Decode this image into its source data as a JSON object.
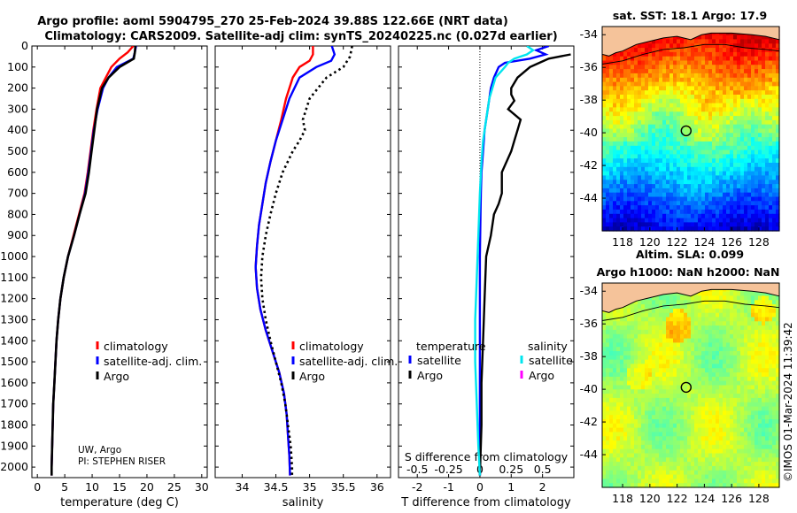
{
  "title": {
    "line1": "Argo profile: aoml 5904795_270 25-Feb-2024 39.88S 122.66E (NRT data)",
    "line2": "Climatology: CARS2009. Satellite-adj clim: synTS_20240225.nc (0.027d earlier)"
  },
  "depth_ticks": [
    0,
    100,
    200,
    300,
    400,
    500,
    600,
    700,
    800,
    900,
    1000,
    1100,
    1200,
    1300,
    1400,
    1500,
    1600,
    1700,
    1800,
    1900,
    2000
  ],
  "colors": {
    "climatology": "#ff0000",
    "satellite": "#0000ff",
    "argo": "#000000",
    "sat_salinity": "#00e5ee",
    "argo_salinity": "#ff00ff",
    "land": "#f5c39a"
  },
  "chart_data": [
    {
      "type": "line",
      "id": "temperature",
      "xlabel": "temperature (deg C)",
      "xlim": [
        -1,
        31
      ],
      "xticks": [
        0,
        5,
        10,
        15,
        20,
        25,
        30
      ],
      "ylim": [
        2050,
        0
      ],
      "legend": [
        "climatology",
        "satellite-adj. clim.",
        "Argo"
      ],
      "credit": [
        "UW, Argo",
        "PI: STEPHEN RISER"
      ],
      "series": [
        {
          "name": "climatology",
          "color": "#ff0000",
          "points": [
            [
              17.5,
              0
            ],
            [
              16.5,
              30
            ],
            [
              15,
              60
            ],
            [
              13.5,
              100
            ],
            [
              12.5,
              150
            ],
            [
              11.5,
              200
            ],
            [
              10.8,
              300
            ],
            [
              10.2,
              400
            ],
            [
              9.7,
              500
            ],
            [
              9.2,
              600
            ],
            [
              8.6,
              700
            ],
            [
              7.6,
              800
            ],
            [
              6.6,
              900
            ],
            [
              5.6,
              1000
            ],
            [
              4.8,
              1100
            ],
            [
              4.2,
              1200
            ],
            [
              3.8,
              1300
            ],
            [
              3.5,
              1400
            ],
            [
              3.3,
              1500
            ],
            [
              3.1,
              1600
            ],
            [
              2.9,
              1700
            ],
            [
              2.8,
              1800
            ],
            [
              2.7,
              1900
            ],
            [
              2.6,
              2000
            ],
            [
              2.6,
              2040
            ]
          ]
        },
        {
          "name": "satellite-adj. clim.",
          "color": "#0000ff",
          "points": [
            [
              18,
              0
            ],
            [
              17.8,
              30
            ],
            [
              17.5,
              60
            ],
            [
              14.5,
              100
            ],
            [
              13,
              150
            ],
            [
              12,
              200
            ],
            [
              11,
              300
            ],
            [
              10.3,
              400
            ],
            [
              9.8,
              500
            ],
            [
              9.3,
              600
            ],
            [
              8.7,
              700
            ],
            [
              7.7,
              800
            ],
            [
              6.7,
              900
            ],
            [
              5.6,
              1000
            ],
            [
              4.8,
              1100
            ],
            [
              4.2,
              1200
            ],
            [
              3.8,
              1300
            ],
            [
              3.5,
              1400
            ],
            [
              3.3,
              1500
            ],
            [
              3.1,
              1600
            ],
            [
              2.9,
              1700
            ],
            [
              2.8,
              1800
            ],
            [
              2.7,
              1900
            ],
            [
              2.6,
              2000
            ],
            [
              2.6,
              2040
            ]
          ]
        },
        {
          "name": "Argo",
          "color": "#000000",
          "points": [
            [
              17.9,
              0
            ],
            [
              17.8,
              30
            ],
            [
              17.6,
              60
            ],
            [
              15,
              100
            ],
            [
              13,
              150
            ],
            [
              11.8,
              200
            ],
            [
              10.9,
              300
            ],
            [
              10.4,
              400
            ],
            [
              9.9,
              500
            ],
            [
              9.4,
              600
            ],
            [
              8.8,
              700
            ],
            [
              7.7,
              800
            ],
            [
              6.7,
              900
            ],
            [
              5.6,
              1000
            ],
            [
              4.8,
              1100
            ],
            [
              4.2,
              1200
            ],
            [
              3.8,
              1300
            ],
            [
              3.5,
              1400
            ],
            [
              3.3,
              1500
            ],
            [
              3.1,
              1600
            ],
            [
              2.9,
              1700
            ],
            [
              2.8,
              1800
            ],
            [
              2.7,
              1900
            ],
            [
              2.6,
              2000
            ],
            [
              2.6,
              2040
            ]
          ]
        }
      ]
    },
    {
      "type": "line",
      "id": "salinity",
      "xlabel": "salinity",
      "xlim": [
        33.6,
        36.2
      ],
      "xticks": [
        34,
        34.5,
        35,
        35.5,
        36
      ],
      "ylim": [
        2050,
        0
      ],
      "legend": [
        "climatology",
        "satellite-adj. clim.",
        "Argo"
      ],
      "series": [
        {
          "name": "climatology",
          "color": "#ff0000",
          "points": [
            [
              35.05,
              0
            ],
            [
              35.05,
              40
            ],
            [
              35,
              70
            ],
            [
              34.85,
              100
            ],
            [
              34.75,
              150
            ],
            [
              34.65,
              250
            ],
            [
              34.58,
              350
            ],
            [
              34.5,
              450
            ],
            [
              34.42,
              550
            ],
            [
              34.35,
              650
            ],
            [
              34.3,
              750
            ],
            [
              34.25,
              850
            ],
            [
              34.22,
              950
            ],
            [
              34.2,
              1050
            ],
            [
              34.22,
              1150
            ],
            [
              34.27,
              1250
            ],
            [
              34.35,
              1350
            ],
            [
              34.45,
              1450
            ],
            [
              34.55,
              1550
            ],
            [
              34.62,
              1650
            ],
            [
              34.66,
              1750
            ],
            [
              34.68,
              1850
            ],
            [
              34.7,
              1950
            ],
            [
              34.71,
              2040
            ]
          ]
        },
        {
          "name": "satellite-adj. clim.",
          "color": "#0000ff",
          "points": [
            [
              35.33,
              0
            ],
            [
              35.37,
              40
            ],
            [
              35.32,
              70
            ],
            [
              35.1,
              100
            ],
            [
              34.85,
              150
            ],
            [
              34.7,
              250
            ],
            [
              34.6,
              350
            ],
            [
              34.5,
              450
            ],
            [
              34.42,
              550
            ],
            [
              34.35,
              650
            ],
            [
              34.3,
              750
            ],
            [
              34.25,
              850
            ],
            [
              34.22,
              950
            ],
            [
              34.2,
              1050
            ],
            [
              34.22,
              1150
            ],
            [
              34.27,
              1250
            ],
            [
              34.35,
              1350
            ],
            [
              34.45,
              1450
            ],
            [
              34.55,
              1550
            ],
            [
              34.62,
              1650
            ],
            [
              34.66,
              1750
            ],
            [
              34.68,
              1850
            ],
            [
              34.7,
              1950
            ],
            [
              34.71,
              2040
            ]
          ]
        },
        {
          "name": "Argo",
          "color": "#000000",
          "points": [
            [
              35.63,
              0
            ],
            [
              35.6,
              50
            ],
            [
              35.5,
              100
            ],
            [
              35.25,
              150
            ],
            [
              35.0,
              250
            ],
            [
              34.95,
              300
            ],
            [
              34.9,
              350
            ],
            [
              34.93,
              400
            ],
            [
              34.85,
              450
            ],
            [
              34.75,
              500
            ],
            [
              34.6,
              600
            ],
            [
              34.5,
              700
            ],
            [
              34.42,
              800
            ],
            [
              34.35,
              900
            ],
            [
              34.3,
              1000
            ],
            [
              34.28,
              1100
            ],
            [
              34.3,
              1200
            ],
            [
              34.35,
              1300
            ],
            [
              34.42,
              1400
            ],
            [
              34.5,
              1500
            ],
            [
              34.58,
              1600
            ],
            [
              34.64,
              1700
            ],
            [
              34.68,
              1800
            ],
            [
              34.72,
              1900
            ],
            [
              34.74,
              2000
            ],
            [
              34.74,
              2040
            ]
          ]
        }
      ]
    },
    {
      "type": "line",
      "id": "difference",
      "xlabel": "T difference from climatology",
      "xlabel_top": "S difference from climatology",
      "xlim": [
        -2.6,
        3.0
      ],
      "xticks": [
        -2,
        -1,
        0,
        1,
        2
      ],
      "s_ticks": [
        -0.5,
        -0.25,
        0,
        0.25,
        0.5
      ],
      "ylim": [
        2050,
        0
      ],
      "legend_headers": [
        "temperature",
        "salinity"
      ],
      "legend": [
        "satellite",
        "Argo",
        "satellite",
        "Argo"
      ],
      "series": [
        {
          "name": "satellite",
          "quantity": "temperature",
          "color": "#0000ff",
          "points": [
            [
              2.2,
              0
            ],
            [
              1.8,
              20
            ],
            [
              2.1,
              40
            ],
            [
              1.6,
              60
            ],
            [
              0.8,
              80
            ],
            [
              0.6,
              100
            ],
            [
              0.45,
              150
            ],
            [
              0.35,
              200
            ],
            [
              0.25,
              300
            ],
            [
              0.15,
              400
            ],
            [
              0.1,
              500
            ],
            [
              0.05,
              600
            ],
            [
              0.03,
              700
            ],
            [
              0.02,
              800
            ],
            [
              0,
              1000
            ],
            [
              0,
              2040
            ]
          ]
        },
        {
          "name": "Argo",
          "quantity": "temperature",
          "color": "#000000",
          "points": [
            [
              2.9,
              40
            ],
            [
              2.2,
              60
            ],
            [
              1.9,
              80
            ],
            [
              1.6,
              100
            ],
            [
              1.2,
              150
            ],
            [
              1.0,
              200
            ],
            [
              1.0,
              230
            ],
            [
              1.1,
              260
            ],
            [
              0.9,
              300
            ],
            [
              1.3,
              350
            ],
            [
              1.2,
              400
            ],
            [
              1.1,
              450
            ],
            [
              1.0,
              500
            ],
            [
              0.7,
              600
            ],
            [
              0.7,
              700
            ],
            [
              0.6,
              750
            ],
            [
              0.45,
              800
            ],
            [
              0.35,
              900
            ],
            [
              0.2,
              1000
            ],
            [
              0.15,
              1200
            ],
            [
              0.1,
              1400
            ],
            [
              0.05,
              1600
            ],
            [
              0.05,
              1800
            ],
            [
              0,
              2040
            ]
          ]
        },
        {
          "name": "satellite",
          "quantity": "salinity",
          "color": "#00e5ee",
          "points": [
            [
              1.5,
              0
            ],
            [
              1.7,
              20
            ],
            [
              1.5,
              40
            ],
            [
              1.1,
              60
            ],
            [
              0.9,
              80
            ],
            [
              0.8,
              100
            ],
            [
              0.5,
              150
            ],
            [
              0.3,
              250
            ],
            [
              0.2,
              350
            ],
            [
              0.1,
              450
            ],
            [
              0.05,
              550
            ],
            [
              0,
              700
            ],
            [
              -0.05,
              900
            ],
            [
              -0.1,
              1100
            ],
            [
              -0.15,
              1300
            ],
            [
              -0.15,
              1500
            ],
            [
              -0.1,
              1700
            ],
            [
              -0.05,
              1900
            ],
            [
              0,
              2040
            ]
          ]
        }
      ]
    },
    {
      "type": "heatmap",
      "id": "sst_map",
      "title": "sat. SST: 18.1 Argo: 17.9",
      "xticks": [
        118,
        120,
        122,
        124,
        126,
        128
      ],
      "yticks": [
        -34,
        -36,
        -38,
        -40,
        -42,
        -44
      ],
      "xlim": [
        116.5,
        129.5
      ],
      "ylim": [
        -46,
        -33.5
      ],
      "float_position": [
        122.66,
        -39.88
      ]
    },
    {
      "type": "heatmap",
      "id": "sla_map",
      "title_line1": "Altim. SLA: 0.099",
      "title_line2": "Argo h1000: NaN h2000: NaN",
      "xticks": [
        118,
        120,
        122,
        124,
        126,
        128
      ],
      "yticks": [
        -34,
        -36,
        -38,
        -40,
        -42,
        -44
      ],
      "xlim": [
        116.5,
        129.5
      ],
      "ylim": [
        -46,
        -33.5
      ],
      "float_position": [
        122.66,
        -39.88
      ]
    }
  ],
  "watermark": "©IMOS 01-Mar-2024 11:39:42"
}
